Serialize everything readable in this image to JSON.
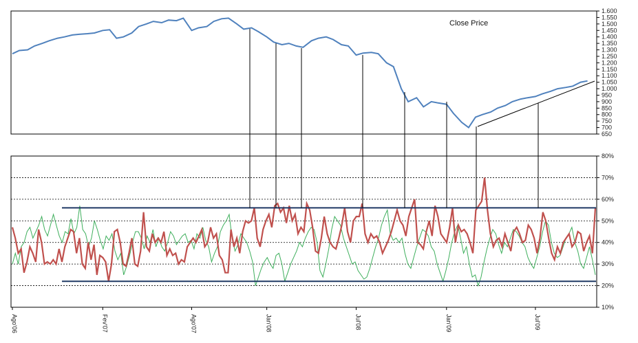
{
  "chart_data": [
    {
      "type": "line",
      "title": "Close Price",
      "ylim": [
        650,
        1600
      ],
      "y_ticks": [
        650,
        700,
        750,
        800,
        850,
        900,
        950,
        1000,
        1050,
        1100,
        1150,
        1200,
        1250,
        1300,
        1350,
        1400,
        1450,
        1500,
        1550,
        1600
      ],
      "y_tick_labels": [
        "650",
        "700",
        "750",
        "800",
        "850",
        "900",
        "950",
        "1.000",
        "1.050",
        "1.100",
        "1.150",
        "1.200",
        "1.250",
        "1.300",
        "1.350",
        "1.400",
        "1.450",
        "1.500",
        "1.550",
        "1.600"
      ],
      "series": [
        {
          "color": "#4F81BD",
          "x": [
            "2006-08-01",
            "2006-08-15",
            "2006-09-01",
            "2006-09-15",
            "2006-10-01",
            "2006-10-15",
            "2006-11-01",
            "2006-11-15",
            "2006-12-01",
            "2006-12-15",
            "2007-01-01",
            "2007-01-15",
            "2007-02-01",
            "2007-02-15",
            "2007-03-01",
            "2007-03-15",
            "2007-04-01",
            "2007-04-15",
            "2007-05-01",
            "2007-05-15",
            "2007-06-01",
            "2007-06-15",
            "2007-07-01",
            "2007-07-15",
            "2007-08-01",
            "2007-08-15",
            "2007-09-01",
            "2007-09-15",
            "2007-10-01",
            "2007-10-15",
            "2007-11-01",
            "2007-11-15",
            "2007-12-01",
            "2007-12-15",
            "2008-01-01",
            "2008-01-15",
            "2008-02-01",
            "2008-02-15",
            "2008-03-01",
            "2008-03-15",
            "2008-04-01",
            "2008-04-15",
            "2008-05-01",
            "2008-05-15",
            "2008-06-01",
            "2008-06-15",
            "2008-07-01",
            "2008-07-15",
            "2008-08-01",
            "2008-08-15",
            "2008-09-01",
            "2008-09-15",
            "2008-10-01",
            "2008-10-15",
            "2008-11-01",
            "2008-11-15",
            "2008-12-01",
            "2008-12-15",
            "2009-01-01",
            "2009-01-15",
            "2009-02-01",
            "2009-02-15",
            "2009-03-01",
            "2009-03-15",
            "2009-04-01",
            "2009-04-15",
            "2009-05-01",
            "2009-05-15",
            "2009-06-01",
            "2009-06-15",
            "2009-07-01",
            "2009-07-15",
            "2009-08-01",
            "2009-08-15",
            "2009-09-01",
            "2009-09-15",
            "2009-10-01",
            "2009-10-15"
          ],
          "values": [
            1270,
            1295,
            1300,
            1330,
            1350,
            1370,
            1390,
            1400,
            1415,
            1420,
            1425,
            1430,
            1450,
            1455,
            1390,
            1400,
            1430,
            1480,
            1500,
            1520,
            1510,
            1530,
            1525,
            1545,
            1450,
            1470,
            1480,
            1520,
            1540,
            1545,
            1500,
            1460,
            1470,
            1440,
            1400,
            1360,
            1340,
            1350,
            1330,
            1320,
            1370,
            1390,
            1400,
            1380,
            1340,
            1330,
            1260,
            1275,
            1280,
            1270,
            1200,
            1170,
            1000,
            900,
            930,
            860,
            900,
            890,
            880,
            810,
            740,
            700,
            780,
            800,
            820,
            850,
            870,
            900,
            920,
            930,
            940,
            960,
            980,
            1000,
            1010,
            1020,
            1050,
            1060
          ]
        }
      ]
    },
    {
      "type": "line",
      "ylim": [
        10,
        80
      ],
      "y_ticks": [
        10,
        20,
        30,
        40,
        50,
        60,
        70,
        80
      ],
      "y_tick_labels": [
        "10%",
        "20%",
        "30%",
        "40%",
        "50%",
        "60%",
        "70%",
        "80%"
      ],
      "x_tick_labels": [
        "Ago'06",
        "Fev'07",
        "Ago'07",
        "Jan'08",
        "Jul'08",
        "Jan'09",
        "Jul'09"
      ],
      "x_ticks": [
        "2006-08-01",
        "2007-02-01",
        "2007-08-01",
        "2008-01-01",
        "2008-07-01",
        "2009-01-01",
        "2009-07-01"
      ],
      "reference_lines": [
        56,
        22
      ],
      "series": [
        {
          "color": "#C0504D",
          "values": [
            47,
            42,
            35,
            37,
            26,
            31,
            38,
            35,
            31,
            46,
            40,
            30,
            31,
            30,
            32,
            30,
            37,
            31,
            38,
            42,
            46,
            45,
            35,
            42,
            30,
            28,
            40,
            32,
            39,
            25,
            34,
            33,
            31,
            22,
            30,
            45,
            46,
            40,
            30,
            29,
            35,
            42,
            30,
            29,
            36,
            54,
            38,
            36,
            44,
            40,
            42,
            40,
            45,
            34,
            37,
            34,
            35,
            30,
            32,
            31,
            38,
            40,
            42,
            40,
            43,
            46,
            38,
            40,
            47,
            42,
            44,
            34,
            32,
            26,
            26,
            46,
            38,
            42,
            35,
            45,
            50,
            49,
            50,
            56,
            42,
            38,
            46,
            50,
            53,
            47,
            57,
            58,
            54,
            56,
            49,
            57,
            50,
            53,
            44,
            47,
            45,
            58,
            55,
            47,
            36,
            35,
            42,
            52,
            44,
            40,
            38,
            37,
            42,
            48,
            56,
            45,
            40,
            50,
            52,
            52,
            58,
            44,
            40,
            44,
            42,
            43,
            40,
            35,
            38,
            41,
            45,
            50,
            55,
            50,
            48,
            43,
            52,
            56,
            60,
            40,
            39,
            37,
            45,
            50,
            43,
            57,
            52,
            44,
            42,
            40,
            47,
            56,
            40,
            48,
            45,
            46,
            44,
            40,
            35,
            55,
            57,
            59,
            70,
            55,
            44,
            38,
            41,
            42,
            38,
            44,
            40,
            36,
            45,
            47,
            44,
            40,
            41,
            48,
            46,
            42,
            35,
            42,
            54,
            50,
            42,
            35,
            32,
            38,
            35,
            40,
            42,
            44,
            38,
            40,
            45,
            44,
            36,
            40,
            43,
            35,
            56
          ]
        },
        {
          "color": "#3DAE5B",
          "values": [
            30,
            35,
            30,
            38,
            40,
            45,
            47,
            42,
            45,
            48,
            52,
            46,
            43,
            48,
            53,
            48,
            43,
            40,
            45,
            44,
            51,
            44,
            47,
            57,
            46,
            44,
            38,
            42,
            50,
            46,
            41,
            37,
            43,
            41,
            44,
            36,
            32,
            35,
            25,
            29,
            34,
            40,
            45,
            45,
            42,
            37,
            43,
            40,
            46,
            38,
            42,
            38,
            36,
            40,
            45,
            43,
            39,
            41,
            43,
            44,
            40,
            41,
            37,
            44,
            42,
            47,
            41,
            38,
            31,
            35,
            38,
            45,
            48,
            50,
            53,
            42,
            36,
            39,
            44,
            42,
            40,
            36,
            31,
            20,
            24,
            28,
            31,
            33,
            30,
            28,
            34,
            35,
            30,
            22,
            26,
            30,
            33,
            36,
            40,
            38,
            42,
            45,
            47,
            46,
            40,
            27,
            24,
            30,
            37,
            46,
            52,
            50,
            48,
            42,
            38,
            34,
            30,
            31,
            27,
            25,
            23,
            24,
            28,
            33,
            38,
            42,
            48,
            52,
            55,
            44,
            41,
            42,
            40,
            42,
            35,
            30,
            28,
            33,
            38,
            42,
            46,
            45,
            43,
            38,
            36,
            30,
            26,
            22,
            27,
            33,
            40,
            45,
            48,
            42,
            35,
            38,
            30,
            24,
            25,
            20,
            24,
            31,
            37,
            42,
            46,
            44,
            39,
            35,
            40,
            38,
            42,
            46,
            45,
            43,
            40,
            38,
            33,
            30,
            28,
            33,
            38,
            45,
            50,
            48,
            40,
            35,
            33,
            34,
            38,
            42,
            44,
            47,
            40,
            36,
            30,
            28,
            33,
            38,
            32,
            25
          ]
        }
      ]
    }
  ]
}
